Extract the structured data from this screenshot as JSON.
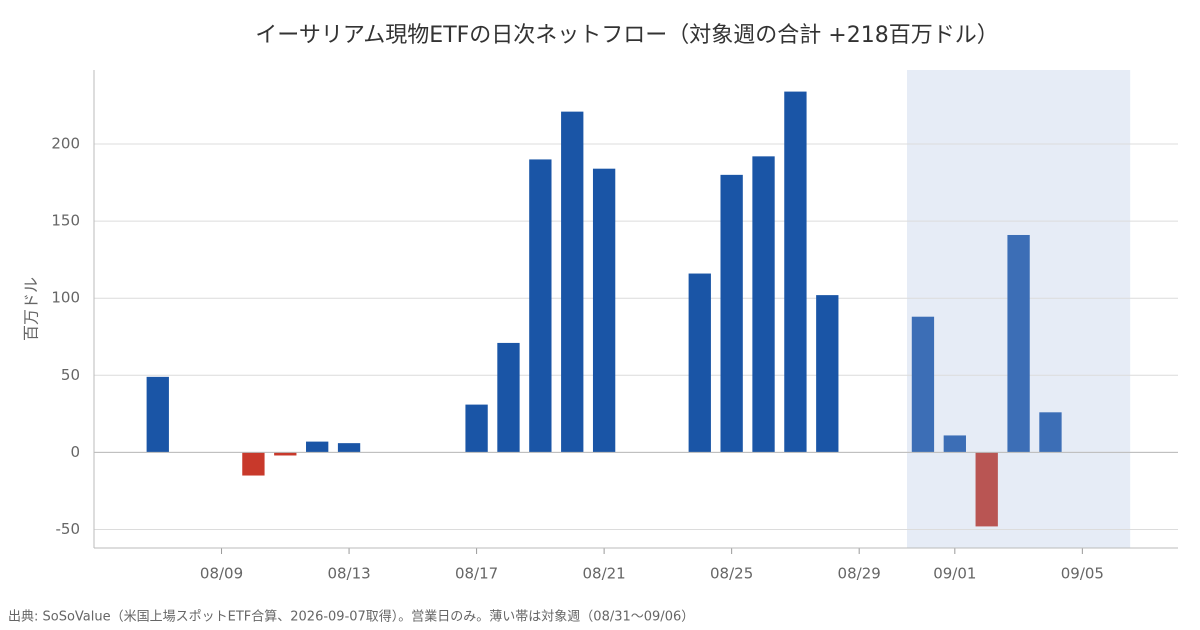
{
  "chart_data": {
    "type": "bar",
    "title": "イーサリアム現物ETFの日次ネットフロー（対象週の合計 +218百万ドル）",
    "y_label": "百万ドル",
    "source": "出典: SoSoValue（米国上場スポットETF合算、2026-09-07取得）。営業日のみ。薄い帯は対象週（08/31〜09/06）",
    "x": [
      "08/07",
      "08/10",
      "08/11",
      "08/12",
      "08/13",
      "08/17",
      "08/18",
      "08/19",
      "08/20",
      "08/21",
      "08/24",
      "08/25",
      "08/26",
      "08/27",
      "08/28",
      "08/31",
      "09/01",
      "09/02",
      "09/03",
      "09/04"
    ],
    "values": [
      49,
      -15,
      -2,
      7,
      6,
      31,
      71,
      190,
      221,
      184,
      116,
      180,
      192,
      234,
      102,
      88,
      11,
      -48,
      141,
      26
    ],
    "color": "#1a55a6",
    "negative_color": "#c8392b",
    "highlight": {
      "start": "08/31",
      "end": "09/06",
      "color": "#e6ecf6",
      "bar_color": "#3c6eb6",
      "negative_bar_color": "#b95553"
    },
    "xlim": [
      "08/05",
      "09/08"
    ],
    "xticks": [
      "08/09",
      "08/13",
      "08/17",
      "08/21",
      "08/25",
      "08/29",
      "09/01",
      "09/05"
    ],
    "ylim": [
      -62,
      248
    ],
    "yticks": [
      -50,
      0,
      50,
      100,
      150,
      200
    ],
    "grid": true
  }
}
